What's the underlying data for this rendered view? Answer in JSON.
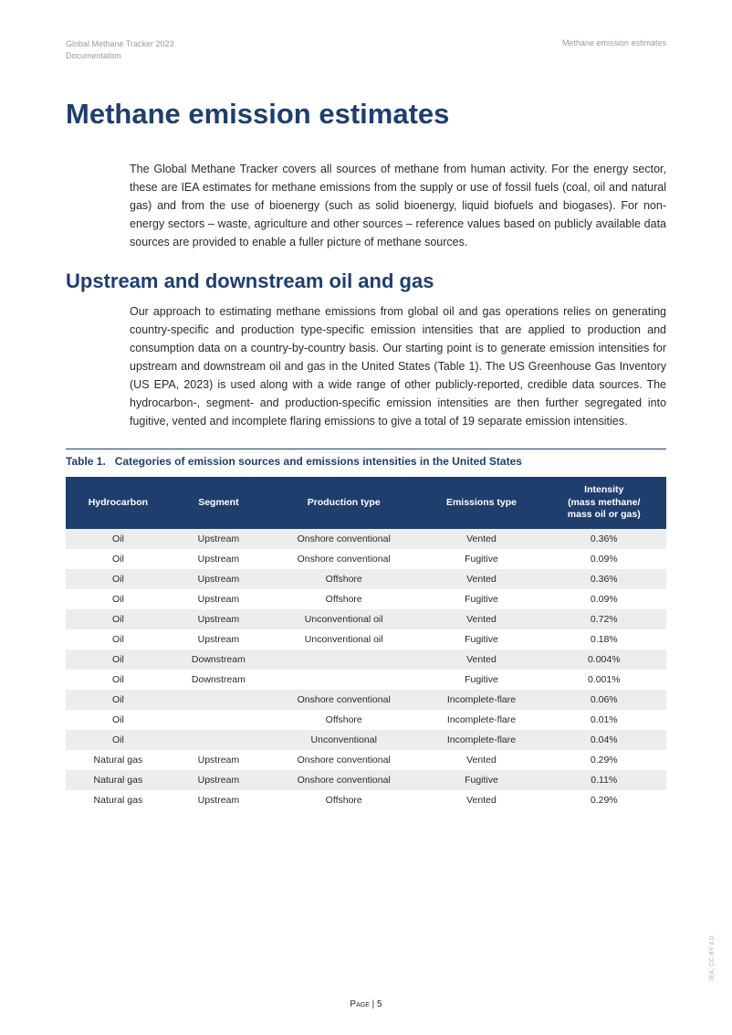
{
  "header": {
    "left_line1": "Global Methane Tracker 2023",
    "left_line2": "Documentation",
    "right": "Methane emission estimates"
  },
  "title": "Methane emission estimates",
  "intro_para": "The Global Methane Tracker covers all sources of methane from human activity. For the energy sector, these are IEA estimates for methane emissions from the supply or use of fossil fuels (coal, oil and natural gas) and from the use of bioenergy (such as solid bioenergy, liquid biofuels and biogases). For non-energy sectors – waste, agriculture and other sources – reference values based on publicly available data sources are provided to enable a fuller picture of methane sources.",
  "section_heading": "Upstream and downstream oil and gas",
  "section_para": "Our approach to estimating methane emissions from global oil and gas operations relies on generating country-specific and production type-specific emission intensities that are applied to production and consumption data on a country-by-country basis. Our starting point is to generate emission intensities for upstream and downstream oil and gas in the United States (Table 1). The US Greenhouse Gas Inventory (US EPA, 2023) is used along with a wide range of other publicly-reported, credible data sources. The hydrocarbon-, segment- and production-specific emission intensities are then further segregated into fugitive, vented and incomplete flaring emissions to give a total of 19 separate emission intensities.",
  "table": {
    "label": "Table 1.",
    "title": "Categories of emission sources and emissions intensities in the United States",
    "columns": [
      "Hydrocarbon",
      "Segment",
      "Production type",
      "Emissions type",
      "Intensity\n(mass methane/\nmass oil or gas)"
    ],
    "rows": [
      [
        "Oil",
        "Upstream",
        "Onshore conventional",
        "Vented",
        "0.36%"
      ],
      [
        "Oil",
        "Upstream",
        "Onshore conventional",
        "Fugitive",
        "0.09%"
      ],
      [
        "Oil",
        "Upstream",
        "Offshore",
        "Vented",
        "0.36%"
      ],
      [
        "Oil",
        "Upstream",
        "Offshore",
        "Fugitive",
        "0.09%"
      ],
      [
        "Oil",
        "Upstream",
        "Unconventional oil",
        "Vented",
        "0.72%"
      ],
      [
        "Oil",
        "Upstream",
        "Unconventional oil",
        "Fugitive",
        "0.18%"
      ],
      [
        "Oil",
        "Downstream",
        "",
        "Vented",
        "0.004%"
      ],
      [
        "Oil",
        "Downstream",
        "",
        "Fugitive",
        "0.001%"
      ],
      [
        "Oil",
        "",
        "Onshore conventional",
        "Incomplete-flare",
        "0.06%"
      ],
      [
        "Oil",
        "",
        "Offshore",
        "Incomplete-flare",
        "0.01%"
      ],
      [
        "Oil",
        "",
        "Unconventional",
        "Incomplete-flare",
        "0.04%"
      ],
      [
        "Natural gas",
        "Upstream",
        "Onshore conventional",
        "Vented",
        "0.29%"
      ],
      [
        "Natural gas",
        "Upstream",
        "Onshore conventional",
        "Fugitive",
        "0.11%"
      ],
      [
        "Natural gas",
        "Upstream",
        "Offshore",
        "Vented",
        "0.29%"
      ]
    ],
    "header_bg": "#1f3e6e",
    "header_fg": "#ffffff",
    "row_even_bg": "#eceded",
    "row_odd_bg": "#ffffff"
  },
  "footer": {
    "page": "Page | 5",
    "side": "IEA. CC BY 4.0."
  },
  "colors": {
    "heading": "#1f3e6e",
    "body_text": "#2a2a2a",
    "header_meta": "#9a9a9a"
  }
}
